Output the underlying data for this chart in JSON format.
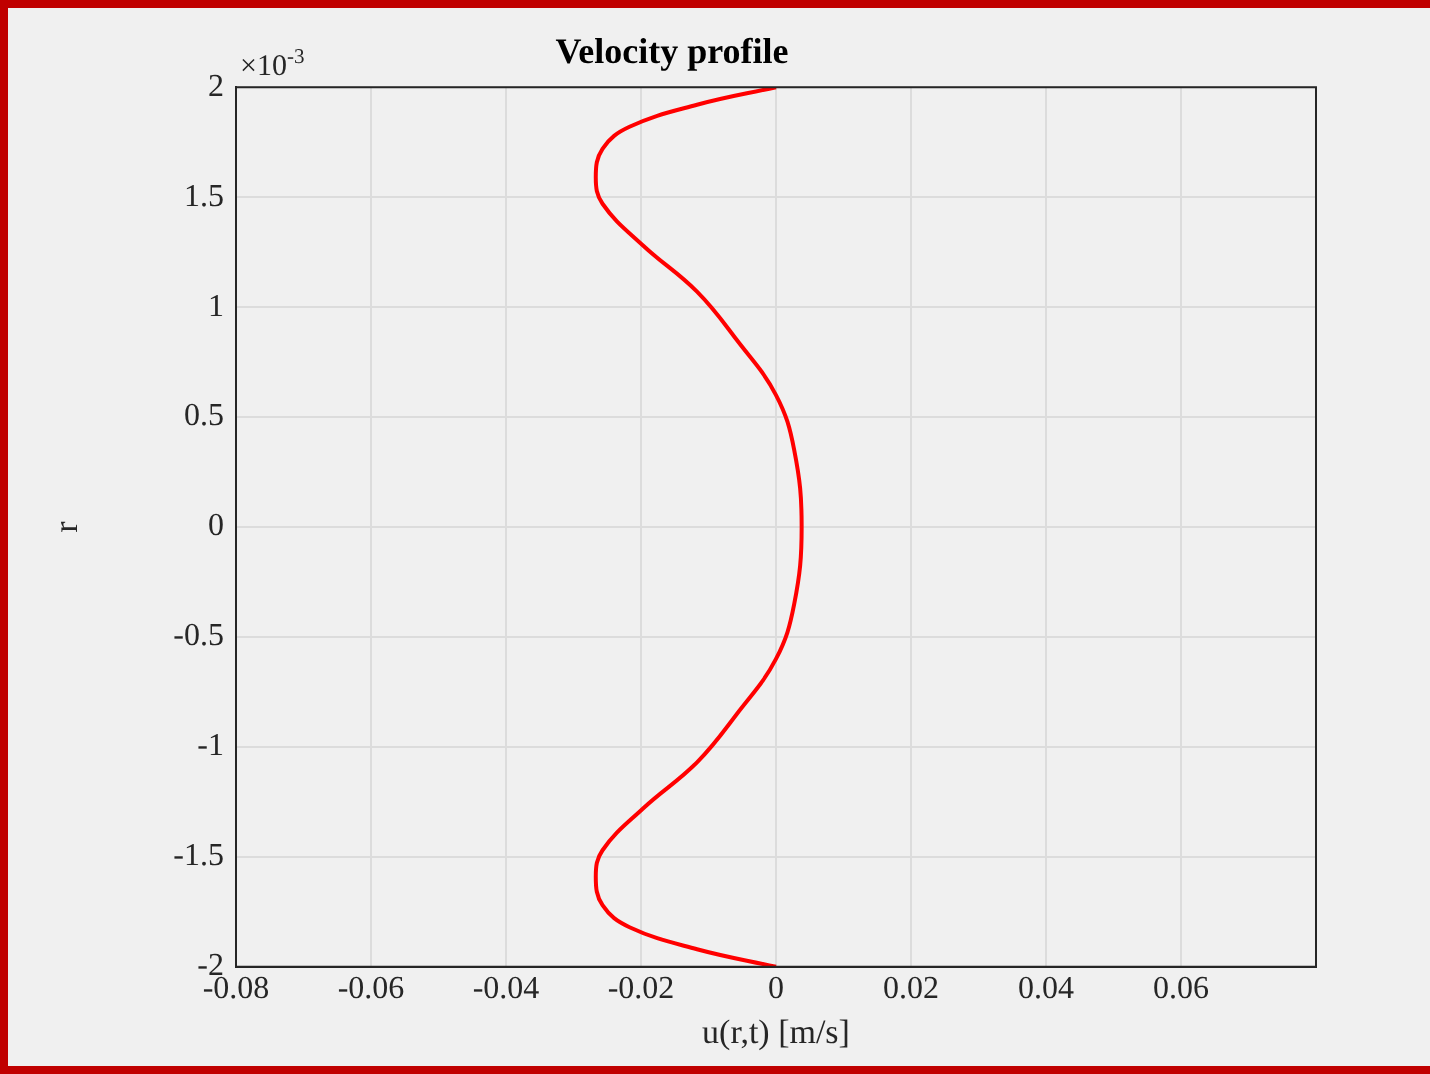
{
  "chart_data": {
    "type": "line",
    "title": "Velocity profile",
    "xlabel": "u(r,t) [m/s]",
    "ylabel": "r",
    "annotations": [
      "×10$^{-3}$"
    ],
    "x": [
      0,
      -0.0117,
      -0.0217,
      -0.0257,
      -0.0267,
      -0.0257,
      -0.0197,
      -0.0117,
      -0.0058,
      0,
      0.0027,
      0.0038,
      0.0027,
      0,
      -0.0058,
      -0.0117,
      -0.0197,
      -0.0257,
      -0.0267,
      -0.0257,
      -0.0217,
      -0.0117,
      0
    ],
    "series": [
      {
        "color": "#ff0000",
        "values": [
          2,
          1.92,
          1.82,
          1.72,
          1.59,
          1.47,
          1.28,
          1.07,
          0.85,
          0.6,
          0.35,
          0,
          -0.35,
          -0.6,
          -0.85,
          -1.07,
          -1.28,
          -1.47,
          -1.59,
          -1.72,
          -1.82,
          -1.92,
          -2
        ]
      }
    ],
    "xlim": [
      -0.08,
      0.08
    ],
    "xticks": [
      -0.08,
      -0.06,
      -0.04,
      -0.02,
      0,
      0.02,
      0.04,
      0.06
    ],
    "ylim": [
      -2,
      2
    ],
    "yticks": [
      -2,
      -1.5,
      -1,
      -0.5,
      0,
      0.5,
      1,
      1.5,
      2
    ],
    "grid": true,
    "legend": false,
    "marker": "none",
    "line_style": "solid"
  }
}
